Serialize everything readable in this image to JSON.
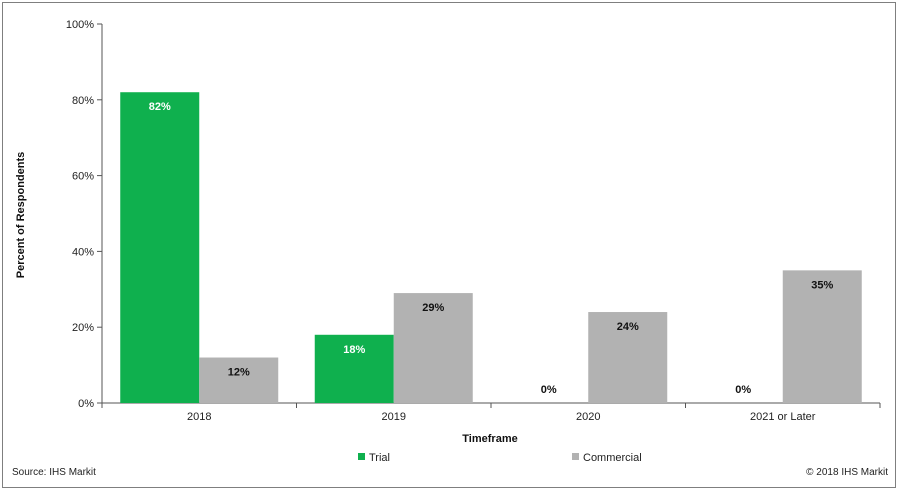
{
  "chart_data": {
    "type": "bar",
    "categories": [
      "2018",
      "2019",
      "2020",
      "2021 or Later"
    ],
    "series": [
      {
        "name": "Trial",
        "values": [
          82,
          18,
          0,
          0
        ],
        "labels": [
          "82%",
          "18%",
          "0%",
          "0%"
        ],
        "color": "#0fb04e",
        "label_color": "#ffffff"
      },
      {
        "name": "Commercial",
        "values": [
          12,
          29,
          24,
          35
        ],
        "labels": [
          "12%",
          "29%",
          "24%",
          "35%"
        ],
        "color": "#b2b2b2",
        "label_color": "#111111"
      }
    ],
    "ylabel": "Percent of Respondents",
    "xlabel": "Timeframe",
    "ylim": [
      0,
      100
    ],
    "yticks": [
      0,
      20,
      40,
      60,
      80,
      100
    ],
    "ytick_labels": [
      "0%",
      "20%",
      "40%",
      "60%",
      "80%",
      "100%"
    ],
    "grid": false,
    "legend_position": "bottom"
  },
  "footer": {
    "source": "Source: IHS Markit",
    "copyright": "© 2018 IHS Markit"
  }
}
